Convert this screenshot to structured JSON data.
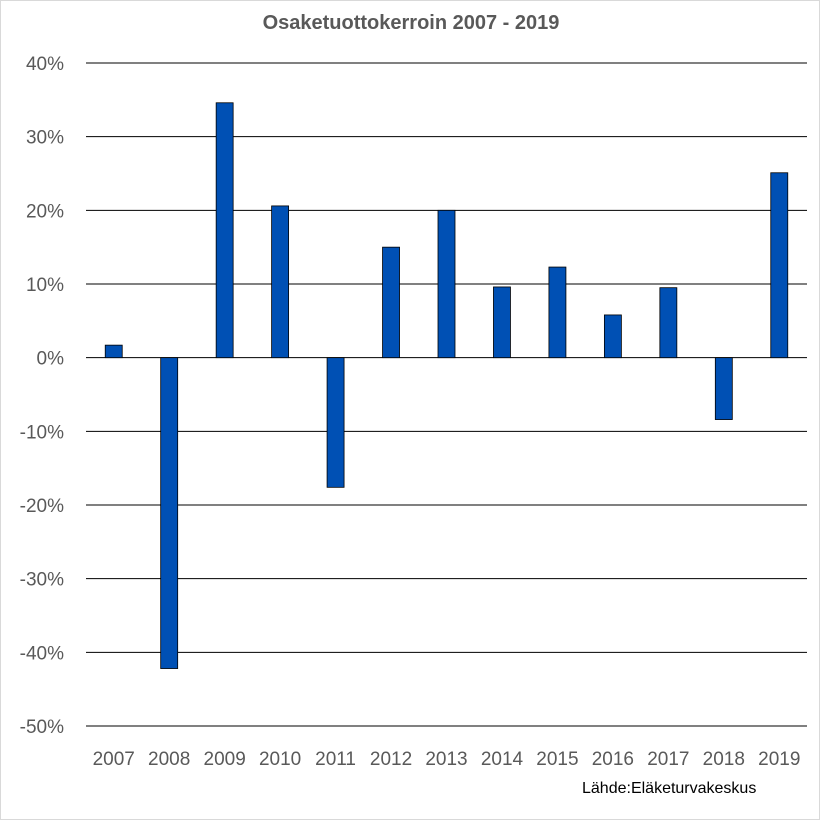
{
  "chart_data": {
    "type": "bar",
    "title": "Osaketuottokerroin 2007 - 2019",
    "categories": [
      "2007",
      "2008",
      "2009",
      "2010",
      "2011",
      "2012",
      "2013",
      "2014",
      "2015",
      "2016",
      "2017",
      "2018",
      "2019"
    ],
    "values": [
      1.7,
      -42.2,
      34.6,
      20.6,
      -17.6,
      15.0,
      20.0,
      9.6,
      12.3,
      5.8,
      9.5,
      -8.4,
      25.1
    ],
    "unit": "%",
    "ylim": [
      -50,
      40
    ],
    "yticks": [
      40,
      30,
      20,
      10,
      0,
      -10,
      -20,
      -30,
      -40,
      -50
    ],
    "ytick_labels": [
      "40%",
      "30%",
      "20%",
      "10%",
      "0%",
      "-10%",
      "-20%",
      "-30%",
      "-40%",
      "-50%"
    ],
    "xlabel": "",
    "ylabel": "",
    "grid": true,
    "legend": "none",
    "bar_color": "#0050b4"
  },
  "source": "Lähde:Eläketurvakeskus"
}
